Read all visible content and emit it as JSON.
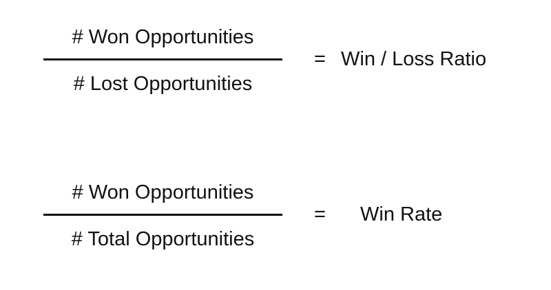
{
  "formulas": [
    {
      "numerator": "# Won Opportunities",
      "denominator": "# Lost Opportunities",
      "equals": "=",
      "result": "Win / Loss Ratio"
    },
    {
      "numerator": "# Won Opportunities",
      "denominator": "# Total Opportunities",
      "equals": "=",
      "result": "Win Rate"
    }
  ]
}
